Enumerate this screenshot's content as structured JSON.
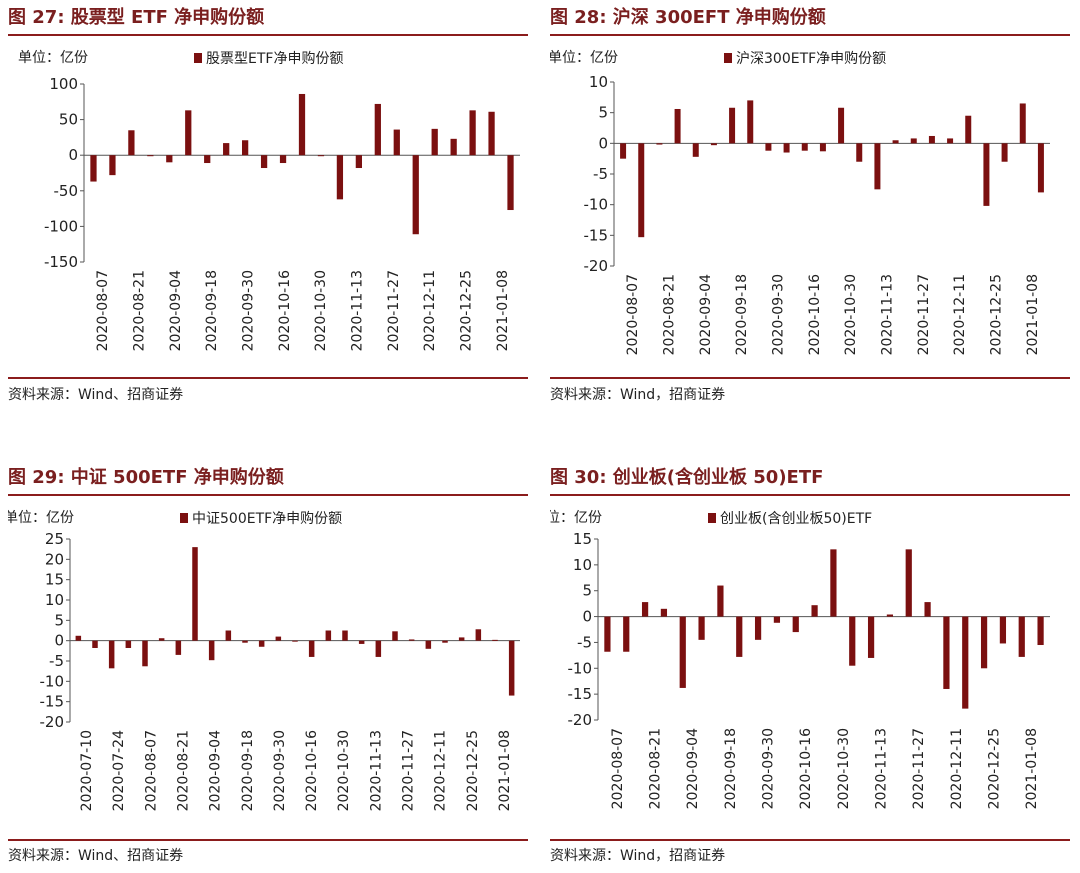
{
  "source_text_a": "资料来源：Wind、招商证券",
  "source_text_b": "资料来源：Wind，招商证券",
  "chart_data": [
    {
      "type": "bar",
      "figure_title": "图 27:  股票型 ETF 净申购份额",
      "unit_label": "单位：亿份",
      "series": [
        {
          "name": "股票型ETF净申购份额",
          "color": "#7b1010",
          "values": [
            -37,
            -28,
            35,
            -1,
            -10,
            63,
            -11,
            17,
            21,
            -18,
            -11,
            86,
            -1,
            -62,
            -18,
            72,
            36,
            -111,
            37,
            23,
            63,
            61,
            -77
          ]
        }
      ],
      "x_tick_labels": [
        "2020-08-07",
        "2020-08-21",
        "2020-09-04",
        "2020-09-18",
        "2020-09-30",
        "2020-10-16",
        "2020-10-30",
        "2020-11-13",
        "2020-11-27",
        "2020-12-11",
        "2020-12-25",
        "2021-01-08"
      ],
      "ylim": [
        -150,
        100
      ],
      "yticks": [
        100,
        50,
        0,
        -50,
        -100,
        -150
      ]
    },
    {
      "type": "bar",
      "figure_title": "图 28:  沪深 300EFT 净申购份额",
      "unit_label": "单位：亿份",
      "series": [
        {
          "name": "沪深300ETF净申购份额",
          "color": "#7b1010",
          "values": [
            -2.5,
            -15.3,
            -0.2,
            5.6,
            -2.2,
            -0.3,
            5.8,
            7.0,
            -1.2,
            -1.5,
            -1.2,
            -1.3,
            5.8,
            -3.0,
            -7.5,
            0.5,
            0.8,
            1.2,
            0.8,
            4.5,
            -10.2,
            -3.0,
            6.5,
            -8.0
          ]
        }
      ],
      "x_tick_labels": [
        "2020-08-07",
        "2020-08-21",
        "2020-09-04",
        "2020-09-18",
        "2020-09-30",
        "2020-10-16",
        "2020-10-30",
        "2020-11-13",
        "2020-11-27",
        "2020-12-11",
        "2020-12-25",
        "2021-01-08"
      ],
      "ylim": [
        -20,
        10
      ],
      "yticks": [
        10,
        5,
        0,
        -5,
        -10,
        -15,
        -20
      ]
    },
    {
      "type": "bar",
      "figure_title": "图 29:  中证 500ETF 净申购份额",
      "unit_label": "单位：亿份",
      "series": [
        {
          "name": "中证500ETF净申购份额",
          "color": "#7b1010",
          "values": [
            1.2,
            -1.8,
            -6.8,
            -1.8,
            -6.3,
            0.6,
            -3.5,
            23,
            -4.8,
            2.5,
            -0.5,
            -1.5,
            1.0,
            0,
            -4.0,
            2.5,
            2.5,
            -0.8,
            -4.0,
            2.3,
            0.3,
            -2.0,
            -0.5,
            0.8,
            2.8,
            0.2,
            -13.5
          ]
        }
      ],
      "x_tick_labels": [
        "2020-07-10",
        "2020-07-24",
        "2020-08-07",
        "2020-08-21",
        "2020-09-04",
        "2020-09-18",
        "2020-09-30",
        "2020-10-16",
        "2020-10-30",
        "2020-11-13",
        "2020-11-27",
        "2020-12-11",
        "2020-12-25",
        "2021-01-08"
      ],
      "ylim": [
        -20,
        25
      ],
      "yticks": [
        25,
        20,
        15,
        10,
        5,
        0,
        -5,
        -10,
        -15,
        -20
      ]
    },
    {
      "type": "bar",
      "figure_title": "图 30:  创业板(含创业板 50)ETF",
      "unit_label": "单位：亿份",
      "series": [
        {
          "name": "创业板(含创业板50)ETF",
          "color": "#7b1010",
          "values": [
            -6.8,
            -6.8,
            2.8,
            1.5,
            -13.8,
            -4.5,
            6.0,
            -7.8,
            -4.5,
            -1.2,
            -3.0,
            2.2,
            13.0,
            -9.5,
            -8.0,
            0.4,
            13.0,
            2.8,
            -14.0,
            -17.8,
            -10.0,
            -5.2,
            -7.8,
            -5.5
          ]
        }
      ],
      "x_tick_labels": [
        "2020-08-07",
        "2020-08-21",
        "2020-09-04",
        "2020-09-18",
        "2020-09-30",
        "2020-10-16",
        "2020-10-30",
        "2020-11-13",
        "2020-11-27",
        "2020-12-11",
        "2020-12-25",
        "2021-01-08"
      ],
      "ylim": [
        -20,
        15
      ],
      "yticks": [
        15,
        10,
        5,
        0,
        -5,
        -10,
        -15,
        -20
      ]
    }
  ]
}
